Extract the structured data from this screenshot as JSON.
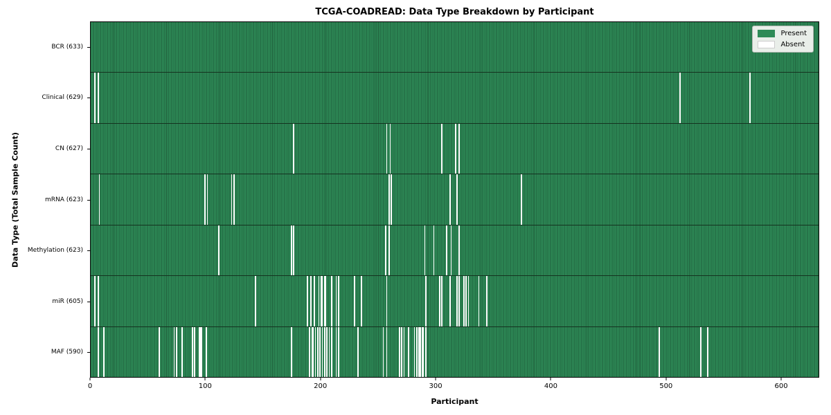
{
  "chart_data": {
    "type": "heatmap",
    "title": "TCGA-COADREAD: Data Type Breakdown by Participant",
    "xlabel": "Participant",
    "ylabel": "Data Type (Total Sample Count)",
    "legend": [
      "Present",
      "Absent"
    ],
    "legend_position": "upper right",
    "grid": false,
    "n_participants": 633,
    "x_range": [
      0,
      633
    ],
    "x_ticks": [
      0,
      100,
      200,
      300,
      400,
      500,
      600
    ],
    "colors": {
      "present": "#2e8b57",
      "present_stripe": "#1f5e3b",
      "absent": "#ffffff",
      "row_separator": "#14321f"
    },
    "rows": [
      {
        "name": "bcr",
        "label": "BCR (633)",
        "total_samples": 633,
        "absent_count": 0,
        "absent_participants": []
      },
      {
        "name": "clinical",
        "label": "Clinical (629)",
        "total_samples": 629,
        "absent_count": 4,
        "absent_participants": [
          3,
          6,
          512,
          573
        ]
      },
      {
        "name": "cn",
        "label": "CN (627)",
        "total_samples": 627,
        "absent_count": 6,
        "absent_participants": [
          176,
          257,
          260,
          305,
          317,
          320
        ]
      },
      {
        "name": "mrna",
        "label": "mRNA (623)",
        "total_samples": 623,
        "absent_count": 10,
        "absent_participants": [
          7,
          99,
          101,
          122,
          124,
          259,
          261,
          312,
          318,
          374
        ]
      },
      {
        "name": "methylation",
        "label": "Methylation (623)",
        "total_samples": 623,
        "absent_count": 10,
        "absent_participants": [
          111,
          174,
          176,
          256,
          259,
          290,
          298,
          309,
          313,
          320
        ]
      },
      {
        "name": "mir",
        "label": "miR (605)",
        "total_samples": 605,
        "absent_count": 28,
        "absent_participants": [
          3,
          6,
          143,
          188,
          191,
          194,
          198,
          200,
          201,
          203,
          204,
          209,
          213,
          215,
          229,
          235,
          257,
          291,
          303,
          305,
          312,
          318,
          320,
          324,
          326,
          328,
          337,
          344
        ]
      },
      {
        "name": "maf",
        "label": "MAF (590)",
        "total_samples": 590,
        "absent_count": 43,
        "absent_participants": [
          6,
          11,
          59,
          72,
          74,
          79,
          88,
          90,
          94,
          95,
          96,
          100,
          174,
          190,
          192,
          193,
          195,
          197,
          199,
          201,
          203,
          205,
          207,
          209,
          213,
          215,
          232,
          254,
          257,
          268,
          270,
          272,
          276,
          281,
          283,
          285,
          286,
          288,
          289,
          291,
          494,
          530,
          536
        ]
      }
    ]
  }
}
